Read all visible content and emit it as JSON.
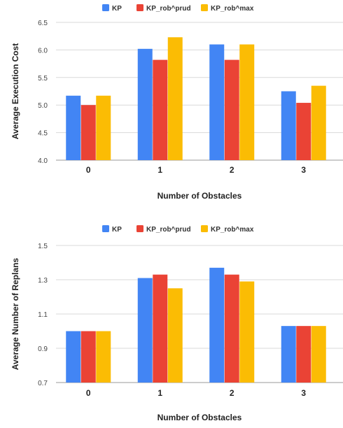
{
  "chart_data": [
    {
      "type": "bar",
      "categories": [
        "0",
        "1",
        "2",
        "3"
      ],
      "series": [
        {
          "name": "KP",
          "values": [
            5.17,
            6.02,
            6.1,
            5.25
          ]
        },
        {
          "name": "KP_rob^prud",
          "values": [
            5.0,
            5.82,
            5.82,
            5.04
          ]
        },
        {
          "name": "KP_rob^max",
          "values": [
            5.17,
            6.23,
            6.1,
            5.35
          ]
        }
      ],
      "colors": [
        "#4285F4",
        "#EA4335",
        "#FBBC04"
      ],
      "xlabel": "Number of Obstacles",
      "ylabel": "Average Execution Cost",
      "ylim": [
        4.0,
        6.5
      ],
      "yticks": [
        "4.0",
        "4.5",
        "5.0",
        "5.5",
        "6.0",
        "6.5"
      ],
      "grid": true,
      "legend": "top-center"
    },
    {
      "type": "bar",
      "categories": [
        "0",
        "1",
        "2",
        "3"
      ],
      "series": [
        {
          "name": "KP",
          "values": [
            1.0,
            1.31,
            1.37,
            1.03
          ]
        },
        {
          "name": "KP_rob^prud",
          "values": [
            1.0,
            1.33,
            1.33,
            1.03
          ]
        },
        {
          "name": "KP_rob^max",
          "values": [
            1.0,
            1.25,
            1.29,
            1.03
          ]
        }
      ],
      "colors": [
        "#4285F4",
        "#EA4335",
        "#FBBC04"
      ],
      "xlabel": "Number of Obstacles",
      "ylabel": "Average Number of Replans",
      "ylim": [
        0.7,
        1.5
      ],
      "yticks": [
        "0.7",
        "0.9",
        "1.1",
        "1.3",
        "1.5"
      ],
      "grid": true,
      "legend": "top-center"
    }
  ]
}
